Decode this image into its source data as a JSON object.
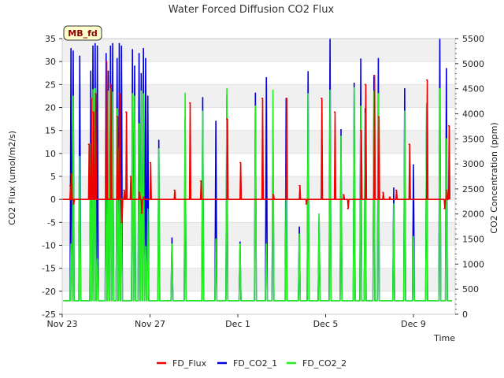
{
  "chart_data": {
    "type": "line",
    "title": "Water Forced Diffusion CO2 Flux",
    "xlabel": "Time",
    "ylabel_left": "CO2 Flux (umol/m2/s)",
    "ylabel_right": "CO2 Concentration (ppm)",
    "site_label": "MB_fd",
    "x_ticks": [
      "Nov 23",
      "Nov 27",
      "Dec 1",
      "Dec 5",
      "Dec 9"
    ],
    "x_tick_days": [
      0,
      4,
      8,
      12,
      16
    ],
    "xlim_days": [
      0,
      17.9
    ],
    "ylim_left": [
      -25,
      35
    ],
    "ylim_right": [
      0,
      5500
    ],
    "y_ticks_left": [
      -25,
      -20,
      -15,
      -10,
      -5,
      0,
      5,
      10,
      15,
      20,
      25,
      30,
      35
    ],
    "y_ticks_right": [
      0,
      500,
      1000,
      1500,
      2000,
      2500,
      3000,
      3500,
      4000,
      4500,
      5000,
      5500
    ],
    "grid_bands": true,
    "legend_placement": "bottom-center",
    "series_colors": {
      "FD_Flux": "#ee0000",
      "FD_CO2_1": "#0000dd",
      "FD_CO2_2": "#22ee22"
    },
    "co2_baseline_ppm": 270,
    "series": [
      {
        "name": "FD_Flux",
        "axis": "left",
        "x": [
          0,
          0.35,
          0.4,
          0.5,
          0.7,
          1.1,
          1.2,
          1.3,
          1.4,
          1.5,
          1.6,
          1.8,
          2.0,
          2.2,
          2.3,
          2.4,
          2.5,
          2.6,
          2.7,
          2.8,
          2.9,
          3.0,
          3.1,
          3.3,
          3.5,
          3.6,
          3.7,
          3.9,
          4.0,
          4.2,
          4.4,
          4.6,
          4.8,
          5.1,
          5.6,
          5.8,
          6.1,
          6.3,
          6.6,
          6.9,
          7.1,
          7.4,
          7.5,
          7.8,
          8.1,
          8.5,
          8.8,
          9.1,
          9.3,
          9.6,
          9.9,
          10.2,
          10.5,
          10.8,
          11.1,
          11.4,
          11.8,
          12.1,
          12.4,
          12.6,
          12.8,
          13.0,
          13.3,
          13.6,
          13.8,
          14.0,
          14.2,
          14.4,
          14.6,
          14.9,
          15.2,
          15.5,
          15.8,
          16.0,
          16.3,
          16.6,
          17.0,
          17.4,
          17.5,
          17.6
        ],
        "y": [
          0,
          3,
          5.5,
          -1,
          0,
          0,
          12,
          22,
          19,
          23,
          0,
          0,
          30,
          25,
          0,
          0,
          18,
          23,
          -5,
          2,
          19,
          0,
          5,
          0,
          1.5,
          -3,
          0.5,
          0,
          8,
          0,
          0,
          0,
          0,
          2,
          0,
          21,
          0,
          4,
          0,
          0,
          0,
          0,
          17.5,
          0,
          8,
          0,
          0,
          22,
          0,
          1,
          0,
          22,
          0,
          3,
          -1,
          0,
          22,
          0,
          19,
          0,
          1,
          -2,
          0,
          15,
          25,
          0,
          27,
          18,
          1.5,
          0.5,
          2,
          0,
          12,
          0,
          0,
          26,
          0,
          -2,
          2,
          16
        ]
      },
      {
        "name": "FD_CO2_1",
        "axis": "right",
        "x": [
          0.4,
          0.5,
          0.8,
          1.3,
          1.4,
          1.5,
          1.6,
          2.0,
          2.1,
          2.2,
          2.3,
          2.5,
          2.6,
          2.7,
          3.2,
          3.3,
          3.5,
          3.6,
          3.7,
          3.8,
          3.9,
          4.4,
          5.0,
          5.6,
          6.4,
          7.0,
          7.5,
          8.1,
          8.8,
          9.3,
          9.6,
          10.2,
          10.8,
          11.2,
          11.7,
          12.2,
          12.7,
          13.3,
          13.6,
          13.8,
          14.2,
          14.4,
          15.1,
          15.6,
          16.0,
          16.6,
          17.2,
          17.5
        ],
        "y": [
          5300,
          5250,
          5150,
          4850,
          5350,
          5400,
          5350,
          5200,
          4850,
          5350,
          5400,
          5100,
          5400,
          5350,
          5280,
          4950,
          5200,
          4800,
          5300,
          5100,
          4350,
          3470,
          1520,
          3930,
          4320,
          3850,
          4360,
          1440,
          4410,
          4720,
          3760,
          4300,
          1740,
          4840,
          1930,
          5500,
          3680,
          4610,
          5090,
          4100,
          4740,
          5100,
          2520,
          4500,
          2980,
          4200,
          5500,
          4900
        ]
      },
      {
        "name": "FD_CO2_2",
        "axis": "right",
        "x": [
          0.4,
          0.5,
          0.8,
          1.3,
          1.4,
          1.5,
          1.6,
          2.0,
          2.1,
          2.2,
          2.3,
          2.5,
          2.6,
          2.7,
          3.2,
          3.3,
          3.5,
          3.6,
          3.7,
          3.8,
          3.9,
          4.4,
          5.0,
          5.6,
          6.4,
          7.0,
          7.5,
          8.1,
          8.8,
          9.3,
          9.6,
          10.2,
          10.8,
          11.2,
          11.7,
          12.2,
          12.7,
          13.3,
          13.6,
          13.8,
          14.2,
          14.4,
          15.1,
          15.6,
          16.0,
          16.6,
          17.2,
          17.5
        ],
        "y": [
          1400,
          4350,
          3150,
          3400,
          4480,
          4500,
          1100,
          2600,
          4450,
          4500,
          4430,
          4100,
          3300,
          2300,
          4400,
          4350,
          3800,
          4450,
          4400,
          1350,
          2100,
          3300,
          1400,
          4410,
          4050,
          1500,
          4500,
          1400,
          4150,
          1400,
          4470,
          2730,
          1600,
          4400,
          2000,
          4470,
          3550,
          4520,
          4150,
          4010,
          4450,
          4400,
          2200,
          4050,
          1550,
          4200,
          4500,
          3500
        ]
      }
    ]
  }
}
